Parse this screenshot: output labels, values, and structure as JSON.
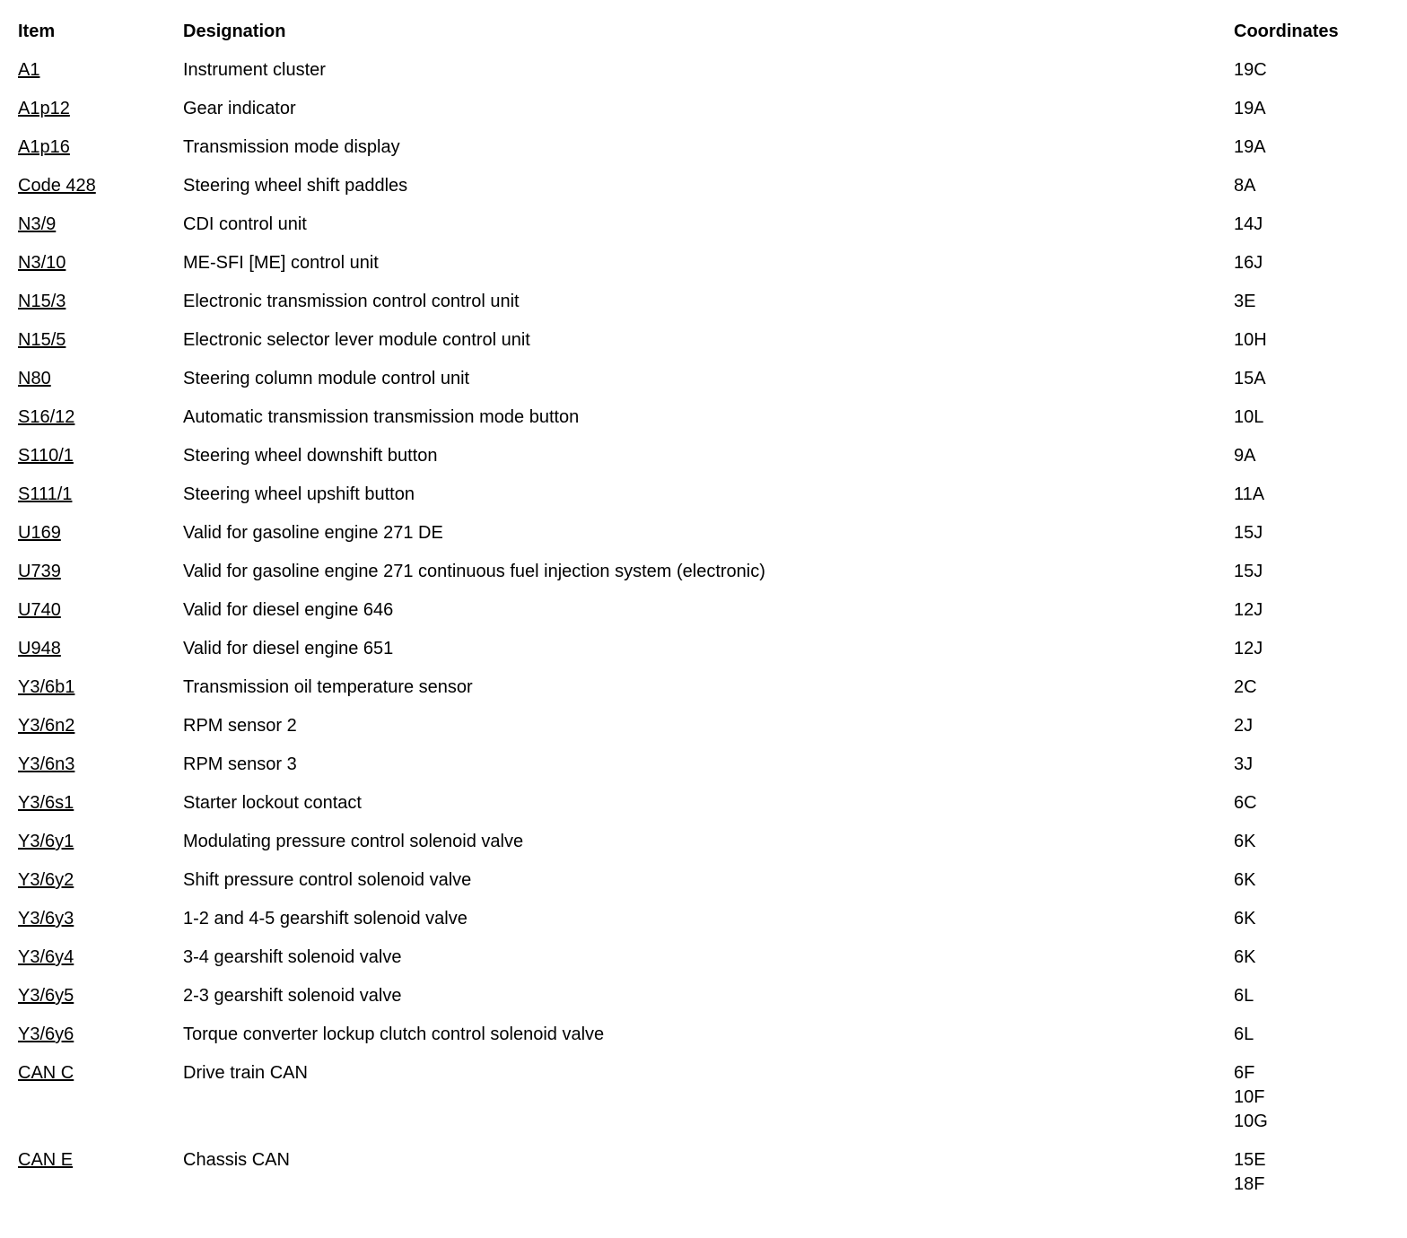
{
  "table": {
    "headers": {
      "item": "Item",
      "designation": "Designation",
      "coordinates": "Coordinates"
    },
    "rows": [
      {
        "item": "A1",
        "designation": "Instrument cluster",
        "coordinates": [
          "19C"
        ]
      },
      {
        "item": "A1p12",
        "designation": "Gear indicator",
        "coordinates": [
          "19A"
        ]
      },
      {
        "item": "A1p16",
        "designation": "Transmission mode display",
        "coordinates": [
          "19A"
        ]
      },
      {
        "item": "Code 428",
        "designation": "Steering wheel shift paddles",
        "coordinates": [
          "8A"
        ]
      },
      {
        "item": "N3/9",
        "designation": "CDI control unit",
        "coordinates": [
          "14J"
        ]
      },
      {
        "item": "N3/10",
        "designation": "ME-SFI [ME] control unit",
        "coordinates": [
          "16J"
        ]
      },
      {
        "item": "N15/3",
        "designation": "Electronic transmission control control unit",
        "coordinates": [
          "3E"
        ]
      },
      {
        "item": "N15/5",
        "designation": "Electronic selector lever module control unit",
        "coordinates": [
          "10H"
        ]
      },
      {
        "item": "N80",
        "designation": "Steering column module control unit",
        "coordinates": [
          "15A"
        ]
      },
      {
        "item": "S16/12",
        "designation": "Automatic transmission transmission mode button",
        "coordinates": [
          "10L"
        ]
      },
      {
        "item": "S110/1",
        "designation": "Steering wheel downshift button",
        "coordinates": [
          "9A"
        ]
      },
      {
        "item": "S111/1",
        "designation": "Steering wheel upshift button",
        "coordinates": [
          "11A"
        ]
      },
      {
        "item": "U169",
        "designation": "Valid for gasoline engine 271 DE",
        "coordinates": [
          "15J"
        ]
      },
      {
        "item": "U739",
        "designation": "Valid for gasoline engine 271 continuous fuel injection system (electronic)",
        "coordinates": [
          "15J"
        ]
      },
      {
        "item": "U740",
        "designation": "Valid for diesel engine 646",
        "coordinates": [
          "12J"
        ]
      },
      {
        "item": "U948",
        "designation": "Valid for diesel engine 651",
        "coordinates": [
          "12J"
        ]
      },
      {
        "item": "Y3/6b1",
        "designation": "Transmission oil temperature sensor",
        "coordinates": [
          "2C"
        ]
      },
      {
        "item": "Y3/6n2",
        "designation": "RPM sensor 2",
        "coordinates": [
          "2J"
        ]
      },
      {
        "item": "Y3/6n3",
        "designation": "RPM sensor 3",
        "coordinates": [
          "3J"
        ]
      },
      {
        "item": "Y3/6s1",
        "designation": "Starter lockout contact",
        "coordinates": [
          "6C"
        ]
      },
      {
        "item": "Y3/6y1",
        "designation": "Modulating pressure control solenoid valve",
        "coordinates": [
          "6K"
        ]
      },
      {
        "item": "Y3/6y2",
        "designation": "Shift pressure control solenoid valve",
        "coordinates": [
          "6K"
        ]
      },
      {
        "item": "Y3/6y3",
        "designation": "1-2 and 4-5 gearshift solenoid valve",
        "coordinates": [
          "6K"
        ]
      },
      {
        "item": "Y3/6y4",
        "designation": "3-4 gearshift solenoid valve",
        "coordinates": [
          "6K"
        ]
      },
      {
        "item": "Y3/6y5",
        "designation": "2-3 gearshift solenoid valve",
        "coordinates": [
          "6L"
        ]
      },
      {
        "item": "Y3/6y6",
        "designation": "Torque converter lockup clutch control solenoid valve",
        "coordinates": [
          "6L"
        ]
      },
      {
        "item": "CAN C",
        "designation": "Drive train CAN",
        "coordinates": [
          "6F",
          "10F",
          "10G"
        ]
      },
      {
        "item": "CAN E",
        "designation": "Chassis CAN",
        "coordinates": [
          "15E",
          "18F"
        ]
      }
    ]
  }
}
